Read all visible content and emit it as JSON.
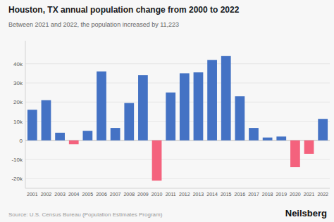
{
  "chart_data": {
    "type": "bar",
    "title": "Houston, TX annual population change from 2000 to 2022",
    "subtitle": "Between 2021 and 2022, the population increased by 11,223",
    "annotations": [
      "Source: U.S. Census Bureau (Population Estimates Program)",
      "Neilsberg"
    ],
    "categories": [
      "2001",
      "2002",
      "2003",
      "2004",
      "2005",
      "2006",
      "2007",
      "2008",
      "2009",
      "2010",
      "2011",
      "2012",
      "2013",
      "2014",
      "2015",
      "2016",
      "2017",
      "2018",
      "2019",
      "2020",
      "2021",
      "2022"
    ],
    "values": [
      16000,
      21000,
      4000,
      -2000,
      5000,
      36000,
      6500,
      19500,
      34000,
      -21000,
      25000,
      35000,
      35500,
      42000,
      44000,
      23000,
      6500,
      1500,
      2000,
      -14000,
      -7000,
      11223
    ],
    "colors": [
      "#4472C4",
      "#4472C4",
      "#4472C4",
      "#F4627D",
      "#4472C4",
      "#4472C4",
      "#4472C4",
      "#4472C4",
      "#4472C4",
      "#F4627D",
      "#4472C4",
      "#4472C4",
      "#4472C4",
      "#4472C4",
      "#4472C4",
      "#4472C4",
      "#4472C4",
      "#4472C4",
      "#4472C4",
      "#F4627D",
      "#F4627D",
      "#4472C4"
    ],
    "ylim": [
      -25000,
      52000
    ],
    "yticks": [
      {
        "value": -20000,
        "label": "-20k"
      },
      {
        "value": -10000,
        "label": "-10k"
      },
      0,
      {
        "value": 10000,
        "label": "10k"
      },
      {
        "value": 20000,
        "label": "20k"
      },
      {
        "value": 30000,
        "label": "30k"
      },
      {
        "value": 40000,
        "label": "40k"
      }
    ],
    "grid": true
  }
}
